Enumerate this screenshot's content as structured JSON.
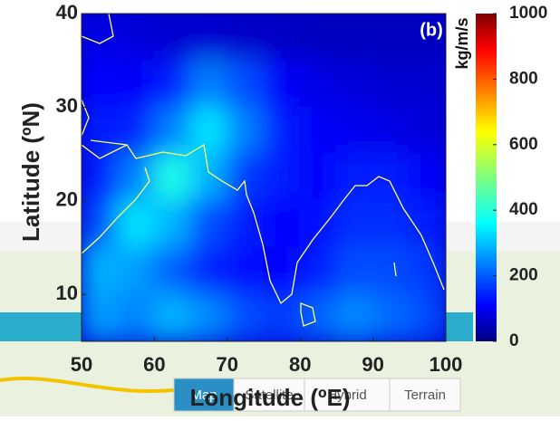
{
  "chart_data": {
    "type": "heatmap",
    "panel_label": "(b)",
    "x_label": "Longitude (ºE)",
    "y_label": "Latitude (ºN)",
    "colorbar_label": "kg/m/s",
    "x": [
      52.5,
      57.5,
      62.5,
      67.5,
      72.5,
      77.5,
      82.5,
      87.5,
      92.5,
      97.5
    ],
    "y": [
      37.5,
      32.5,
      27.5,
      22.5,
      17.5,
      12.5,
      7.5
    ],
    "values": [
      [
        100,
        90,
        80,
        80,
        70,
        70,
        60,
        60,
        60,
        60
      ],
      [
        130,
        120,
        150,
        250,
        200,
        120,
        100,
        90,
        80,
        80
      ],
      [
        150,
        160,
        250,
        350,
        250,
        150,
        120,
        110,
        100,
        90
      ],
      [
        150,
        250,
        400,
        300,
        180,
        150,
        130,
        150,
        150,
        120
      ],
      [
        200,
        350,
        300,
        200,
        150,
        130,
        140,
        170,
        170,
        150
      ],
      [
        300,
        280,
        220,
        160,
        140,
        130,
        150,
        200,
        200,
        180
      ],
      [
        280,
        250,
        300,
        260,
        200,
        180,
        220,
        260,
        230,
        200
      ]
    ],
    "xlim": [
      50,
      100
    ],
    "xticks": [
      50,
      60,
      70,
      80,
      90,
      100
    ],
    "ylim": [
      5,
      40
    ],
    "yticks": [
      10,
      20,
      30,
      40
    ],
    "clim": [
      0,
      1000
    ],
    "cticks": [
      0,
      200,
      400,
      600,
      800,
      1000
    ],
    "colormap": "jet"
  },
  "ui": {
    "buttons": [
      "Map",
      "Satellite",
      "Hybrid",
      "Terrain"
    ]
  }
}
